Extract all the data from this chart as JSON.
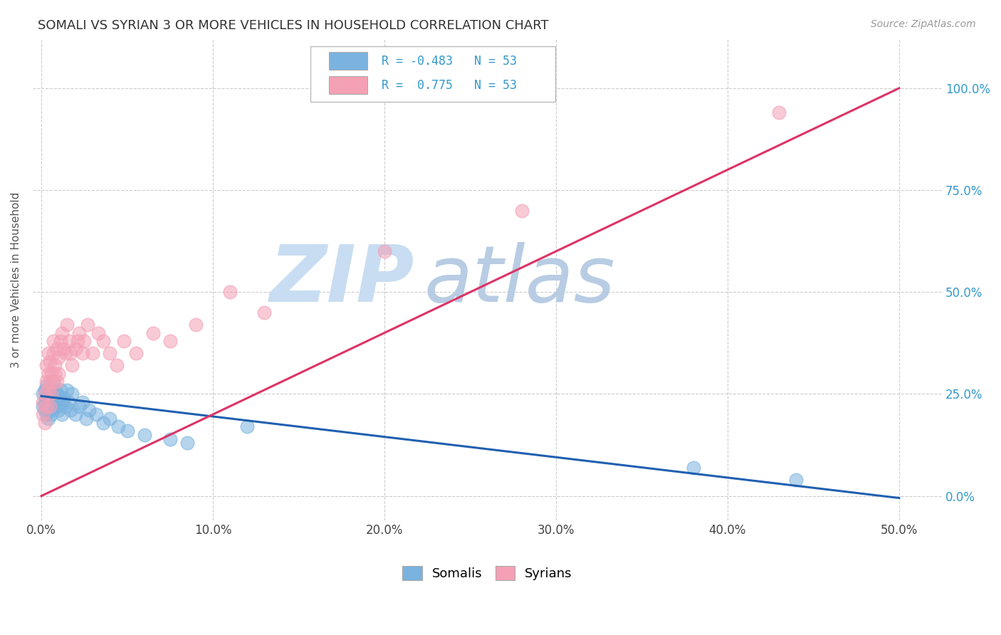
{
  "title": "SOMALI VS SYRIAN 3 OR MORE VEHICLES IN HOUSEHOLD CORRELATION CHART",
  "source": "Source: ZipAtlas.com",
  "xlabel_ticks": [
    "0.0%",
    "10.0%",
    "20.0%",
    "30.0%",
    "40.0%",
    "50.0%"
  ],
  "xlabel_vals": [
    0.0,
    0.1,
    0.2,
    0.3,
    0.4,
    0.5
  ],
  "ylabel": "3 or more Vehicles in Household",
  "ylabel_ticks": [
    "0.0%",
    "25.0%",
    "50.0%",
    "75.0%",
    "100.0%"
  ],
  "ylabel_vals": [
    0.0,
    0.25,
    0.5,
    0.75,
    1.0
  ],
  "xlim": [
    -0.005,
    0.525
  ],
  "ylim": [
    -0.06,
    1.12
  ],
  "legend_somali_label": "Somalis",
  "legend_syrian_label": "Syrians",
  "R_somali": -0.483,
  "N_somali": 53,
  "R_syrian": 0.775,
  "N_syrian": 53,
  "somali_color": "#7ab3df",
  "syrian_color": "#f4a0b5",
  "somali_line_color": "#2060b0",
  "syrian_line_color": "#dd3366",
  "watermark_zip_color": "#c8ddf0",
  "watermark_atlas_color": "#c0d8e8",
  "background_color": "#ffffff",
  "grid_color": "#cccccc",
  "somali_x": [
    0.001,
    0.001,
    0.002,
    0.002,
    0.002,
    0.003,
    0.003,
    0.003,
    0.003,
    0.004,
    0.004,
    0.004,
    0.005,
    0.005,
    0.005,
    0.005,
    0.006,
    0.006,
    0.006,
    0.007,
    0.007,
    0.007,
    0.008,
    0.008,
    0.009,
    0.009,
    0.01,
    0.01,
    0.011,
    0.012,
    0.012,
    0.013,
    0.014,
    0.015,
    0.016,
    0.017,
    0.018,
    0.02,
    0.022,
    0.024,
    0.026,
    0.028,
    0.032,
    0.036,
    0.04,
    0.045,
    0.05,
    0.06,
    0.075,
    0.085,
    0.12,
    0.38,
    0.44
  ],
  "somali_y": [
    0.22,
    0.25,
    0.21,
    0.23,
    0.26,
    0.2,
    0.22,
    0.24,
    0.27,
    0.19,
    0.23,
    0.26,
    0.21,
    0.24,
    0.22,
    0.25,
    0.2,
    0.23,
    0.26,
    0.22,
    0.25,
    0.28,
    0.23,
    0.26,
    0.22,
    0.25,
    0.24,
    0.21,
    0.26,
    0.23,
    0.2,
    0.24,
    0.22,
    0.26,
    0.23,
    0.21,
    0.25,
    0.2,
    0.22,
    0.23,
    0.19,
    0.21,
    0.2,
    0.18,
    0.19,
    0.17,
    0.16,
    0.15,
    0.14,
    0.13,
    0.17,
    0.07,
    0.04
  ],
  "syrian_x": [
    0.001,
    0.001,
    0.002,
    0.002,
    0.003,
    0.003,
    0.003,
    0.004,
    0.004,
    0.004,
    0.005,
    0.005,
    0.005,
    0.006,
    0.006,
    0.007,
    0.007,
    0.007,
    0.008,
    0.008,
    0.009,
    0.009,
    0.01,
    0.01,
    0.011,
    0.012,
    0.013,
    0.014,
    0.015,
    0.016,
    0.017,
    0.018,
    0.02,
    0.021,
    0.022,
    0.024,
    0.025,
    0.027,
    0.03,
    0.033,
    0.036,
    0.04,
    0.044,
    0.048,
    0.055,
    0.065,
    0.075,
    0.09,
    0.11,
    0.13,
    0.2,
    0.28,
    0.43
  ],
  "syrian_y": [
    0.2,
    0.23,
    0.18,
    0.25,
    0.22,
    0.28,
    0.32,
    0.26,
    0.3,
    0.35,
    0.22,
    0.28,
    0.33,
    0.25,
    0.3,
    0.28,
    0.35,
    0.38,
    0.3,
    0.32,
    0.36,
    0.28,
    0.34,
    0.3,
    0.38,
    0.4,
    0.36,
    0.35,
    0.42,
    0.38,
    0.35,
    0.32,
    0.36,
    0.38,
    0.4,
    0.35,
    0.38,
    0.42,
    0.35,
    0.4,
    0.38,
    0.35,
    0.32,
    0.38,
    0.35,
    0.4,
    0.38,
    0.42,
    0.5,
    0.45,
    0.6,
    0.7,
    0.94
  ]
}
